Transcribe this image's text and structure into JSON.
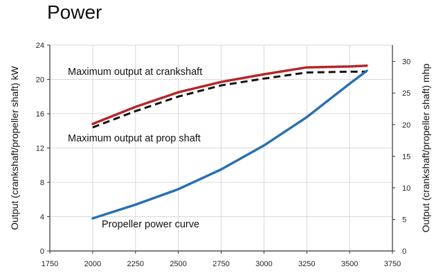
{
  "chart_data": {
    "type": "line",
    "title": "Power",
    "xlabel": "",
    "ylabel": "Output (crankshaft/propeller shaft) kW",
    "y2label": "Output (crankshaft/propeller shaft) mhp",
    "xlim": [
      1750,
      3750
    ],
    "ylim": [
      0,
      24
    ],
    "y2lim": [
      0,
      32.6
    ],
    "x_ticks": [
      1750,
      2000,
      2250,
      2500,
      2750,
      3000,
      3250,
      3500,
      3750
    ],
    "y_ticks": [
      0,
      4,
      8,
      12,
      16,
      20,
      24
    ],
    "y2_ticks": [
      0,
      5,
      10,
      15,
      20,
      25,
      30
    ],
    "grid": true,
    "series": [
      {
        "name": "Maximum output at crankshaft",
        "color": "#b5272a",
        "style": "solid",
        "x": [
          2000,
          2250,
          2500,
          2750,
          3000,
          3250,
          3500,
          3600
        ],
        "values": [
          14.8,
          16.8,
          18.5,
          19.7,
          20.6,
          21.4,
          21.5,
          21.6
        ]
      },
      {
        "name": "Maximum output at prop shaft",
        "color": "#111111",
        "style": "dashed",
        "x": [
          2000,
          2250,
          2500,
          2750,
          3000,
          3250,
          3500,
          3600
        ],
        "values": [
          14.4,
          16.3,
          18.0,
          19.3,
          20.1,
          20.8,
          20.9,
          20.9
        ]
      },
      {
        "name": "Propeller power curve",
        "color": "#2a6fb3",
        "style": "solid",
        "x": [
          2000,
          2250,
          2500,
          2750,
          3000,
          3250,
          3500,
          3600
        ],
        "values": [
          3.8,
          5.4,
          7.2,
          9.5,
          12.3,
          15.6,
          19.5,
          21.0
        ]
      }
    ],
    "annotations": [
      {
        "text": "Maximum output at crankshaft",
        "series": 0
      },
      {
        "text": "Maximum output at prop shaft",
        "series": 1
      },
      {
        "text": "Propeller power curve",
        "series": 2
      }
    ]
  }
}
